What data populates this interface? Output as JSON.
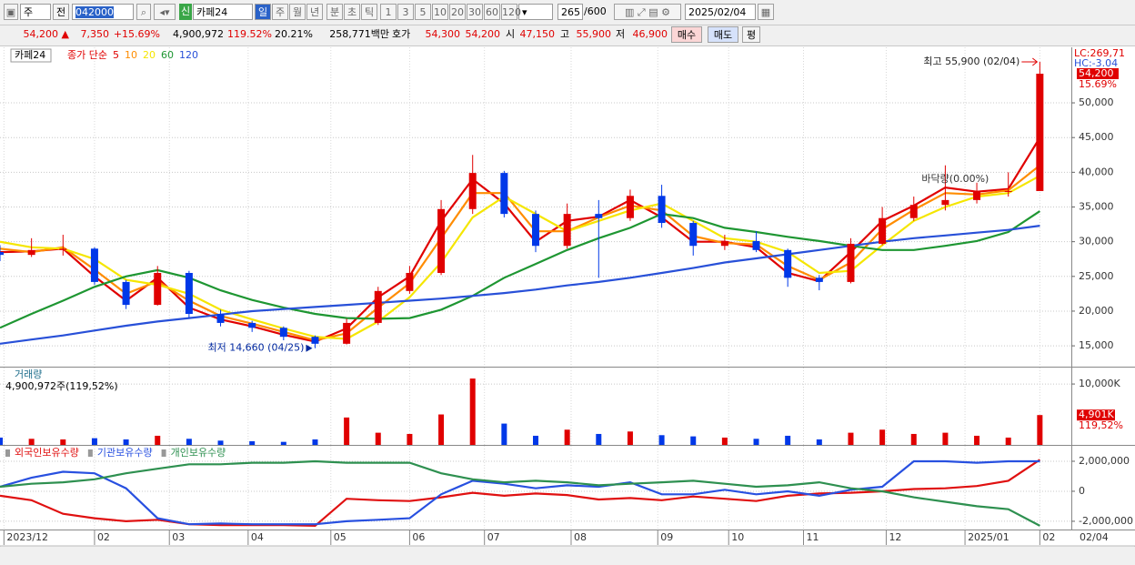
{
  "toolbar": {
    "unit": "주",
    "prev": "전",
    "code": "042000",
    "credit": "신",
    "name": "카페24",
    "periods": [
      "일",
      "주",
      "월",
      "년",
      "분",
      "초",
      "틱"
    ],
    "intervals": [
      "1",
      "3",
      "5",
      "10",
      "20",
      "30",
      "60",
      "120"
    ],
    "count": "265",
    "max": "/600",
    "date": "2025/02/04"
  },
  "quote": {
    "price": "54,200 ▲",
    "change": "7,350",
    "rate": "+15.69%",
    "volume": "4,900,972",
    "vol_rate": "119.52%",
    "turnover": "20.21%",
    "amount": "258,771백만",
    "ask_label": "호가",
    "ask": "54,300",
    "bid": "54,200",
    "open_label": "시",
    "open": "47,150",
    "high_label": "고",
    "high": "55,900",
    "low_label": "저",
    "low": "46,900",
    "buy": "매수",
    "sell": "매도",
    "avg": "평"
  },
  "chart_data": [
    {
      "type": "candlestick",
      "name": "카페24",
      "legend_title": "종가 단순",
      "lc": "LC:269,71",
      "hc": "HC:-3.04",
      "x": [
        0,
        8,
        16,
        24,
        32,
        40,
        48,
        56,
        64,
        72,
        80,
        88,
        96,
        104,
        112,
        120,
        128,
        136,
        144,
        152,
        160,
        168,
        176,
        184,
        192,
        200,
        208,
        216,
        224,
        232,
        240,
        248,
        256,
        264
      ],
      "xlim": [
        0,
        272
      ],
      "ylim": [
        12000,
        58000
      ],
      "yticks": [
        {
          "value": 15000,
          "label": "15,000"
        },
        {
          "value": 20000,
          "label": "20,000"
        },
        {
          "value": 25000,
          "label": "25,000"
        },
        {
          "value": 30000,
          "label": "30,000"
        },
        {
          "value": 35000,
          "label": "35,000"
        },
        {
          "value": 40000,
          "label": "40,000"
        },
        {
          "value": 45000,
          "label": "45,000"
        },
        {
          "value": 50000,
          "label": "50,000"
        }
      ],
      "grid": true,
      "up_color": "#e00000",
      "down_color": "#0038e8",
      "candles": {
        "open": [
          28500,
          28100,
          28800,
          29000,
          24200,
          20900,
          25500,
          19600,
          18300,
          17600,
          16300,
          15300,
          18300,
          22900,
          25500,
          34700,
          39900,
          34000,
          29400,
          34000,
          33400,
          36600,
          32700,
          29400,
          30100,
          28800,
          24800,
          24200,
          29700,
          33400,
          35300,
          36000,
          37300,
          37300
        ],
        "high": [
          29500,
          30500,
          31000,
          29200,
          24500,
          26500,
          25800,
          20200,
          18600,
          17800,
          16500,
          18900,
          23500,
          26500,
          36000,
          42500,
          40200,
          34500,
          35500,
          36000,
          37500,
          38200,
          33000,
          31000,
          31500,
          29000,
          25200,
          30500,
          35000,
          36500,
          41000,
          38500,
          40000,
          55900
        ],
        "low": [
          27200,
          27800,
          28000,
          23800,
          20300,
          20800,
          19000,
          17800,
          17000,
          15800,
          14660,
          15200,
          18000,
          22500,
          25200,
          34000,
          33500,
          28500,
          29000,
          24800,
          33000,
          32000,
          28000,
          28800,
          28500,
          23500,
          23000,
          24000,
          29500,
          33000,
          34500,
          35500,
          36500,
          38000
        ],
        "close": [
          28100,
          28800,
          29000,
          24200,
          20900,
          25500,
          19600,
          18300,
          17600,
          16300,
          15300,
          18300,
          22900,
          25500,
          34700,
          39900,
          34000,
          29400,
          34000,
          33400,
          36600,
          32700,
          29400,
          30100,
          28800,
          24800,
          24200,
          29700,
          33400,
          35300,
          36000,
          37300,
          37300,
          54200
        ]
      },
      "series": [
        {
          "name": "5",
          "color": "#e00000",
          "values": [
            28500,
            28600,
            29000,
            25000,
            21500,
            24800,
            20500,
            18800,
            17800,
            16600,
            15600,
            17500,
            22000,
            25000,
            33000,
            39000,
            35500,
            30000,
            33000,
            33600,
            36000,
            33500,
            30000,
            30000,
            29200,
            25500,
            24300,
            28500,
            33000,
            35200,
            37800,
            37200,
            37600,
            45000
          ]
        },
        {
          "name": "10",
          "color": "#ff8c00",
          "values": [
            29000,
            28500,
            29200,
            26000,
            22500,
            24300,
            21500,
            19300,
            18200,
            17000,
            15800,
            16800,
            20500,
            24000,
            30500,
            37000,
            37000,
            31500,
            31500,
            33500,
            35200,
            34500,
            30800,
            29800,
            29600,
            26500,
            24500,
            27000,
            31800,
            34600,
            37000,
            36800,
            37400,
            41000
          ]
        },
        {
          "name": "20",
          "color": "#f5e600",
          "values": [
            30000,
            29200,
            29000,
            27500,
            24500,
            23800,
            22500,
            20200,
            18800,
            17500,
            16300,
            16000,
            18500,
            22000,
            27000,
            33500,
            36500,
            34000,
            31500,
            33000,
            34500,
            35500,
            33000,
            30500,
            30000,
            28500,
            25500,
            25800,
            29500,
            33000,
            35000,
            36500,
            37000,
            39500
          ]
        },
        {
          "name": "60",
          "color": "#1e9632",
          "values": [
            17600,
            19600,
            21500,
            23500,
            25000,
            25900,
            24800,
            23000,
            21600,
            20500,
            19600,
            19000,
            18900,
            19000,
            20200,
            22200,
            24800,
            26800,
            28800,
            30500,
            32000,
            34000,
            33400,
            32000,
            31400,
            30700,
            30100,
            29400,
            28800,
            28800,
            29400,
            30100,
            31400,
            34400
          ]
        },
        {
          "name": "120",
          "color": "#2850d8",
          "values": [
            15300,
            15900,
            16500,
            17200,
            17900,
            18500,
            19000,
            19500,
            20000,
            20300,
            20600,
            20900,
            21200,
            21500,
            21800,
            22200,
            22600,
            23100,
            23700,
            24200,
            24800,
            25500,
            26200,
            27000,
            27600,
            28200,
            28800,
            29400,
            30000,
            30500,
            30900,
            31300,
            31700,
            32300
          ]
        }
      ],
      "last": {
        "value": 54200,
        "label": "54,200",
        "change": "15.69%"
      },
      "annotations": [
        {
          "text": "최고 55,900 (02/04)",
          "x": 264,
          "y": 55900
        },
        {
          "text": "최저 14,660 (04/25)",
          "x": 80,
          "y": 14660
        },
        {
          "text": "바닥량(0.00%)",
          "x": 234,
          "y": 39000
        }
      ]
    },
    {
      "type": "bar",
      "name": "거래량",
      "subtitle": "4,900,972주(119,52%)",
      "x": [
        0,
        8,
        16,
        24,
        32,
        40,
        48,
        56,
        64,
        72,
        80,
        88,
        96,
        104,
        112,
        120,
        128,
        136,
        144,
        152,
        160,
        168,
        176,
        184,
        192,
        200,
        208,
        216,
        224,
        232,
        240,
        248,
        256,
        264
      ],
      "xlim": [
        0,
        272
      ],
      "ylim": [
        0,
        12700
      ],
      "yticks": [
        {
          "value": 10000,
          "label": "10,000K"
        }
      ],
      "values": [
        1200,
        1000,
        900,
        1100,
        900,
        1500,
        1000,
        700,
        600,
        500,
        900,
        4500,
        2000,
        1800,
        5000,
        10900,
        3500,
        1500,
        2500,
        1800,
        2200,
        1600,
        1400,
        1200,
        1000,
        1500,
        900,
        2000,
        2500,
        1800,
        2000,
        1500,
        1200,
        4901
      ],
      "last": {
        "value": 4901,
        "label": "4,901K",
        "change": "119,52%"
      }
    },
    {
      "type": "line",
      "x": [
        0,
        8,
        16,
        24,
        32,
        40,
        48,
        56,
        64,
        72,
        80,
        88,
        96,
        104,
        112,
        120,
        128,
        136,
        144,
        152,
        160,
        168,
        176,
        184,
        192,
        200,
        208,
        216,
        224,
        232,
        240,
        248,
        256,
        264
      ],
      "xlim": [
        0,
        272
      ],
      "ylim": [
        -2550000,
        3030000
      ],
      "yticks": [
        {
          "value": -2000000,
          "label": "-2,000,000"
        },
        0,
        {
          "value": 2000000,
          "label": "2,000,000"
        }
      ],
      "xticks": [
        {
          "value": 1,
          "label": "2023/12"
        },
        {
          "value": 24,
          "label": "02"
        },
        {
          "value": 43,
          "label": "03"
        },
        {
          "value": 63,
          "label": "04"
        },
        {
          "value": 84,
          "label": "05"
        },
        {
          "value": 104,
          "label": "06"
        },
        {
          "value": 123,
          "label": "07"
        },
        {
          "value": 145,
          "label": "08"
        },
        {
          "value": 167,
          "label": "09"
        },
        {
          "value": 185,
          "label": "10"
        },
        {
          "value": 204,
          "label": "11"
        },
        {
          "value": 225,
          "label": "12"
        },
        {
          "value": 245,
          "label": "2025/01"
        },
        {
          "value": 264,
          "label": "02"
        }
      ],
      "last_date": "02/04",
      "series": [
        {
          "name": "외국인보유수량",
          "color": "#e01010",
          "values": [
            -300000,
            -600000,
            -1500000,
            -1800000,
            -2000000,
            -1900000,
            -2200000,
            -2250000,
            -2250000,
            -2250000,
            -2300000,
            -500000,
            -600000,
            -650000,
            -400000,
            -100000,
            -300000,
            -150000,
            -250000,
            -550000,
            -450000,
            -600000,
            -350000,
            -500000,
            -650000,
            -300000,
            -150000,
            -100000,
            0,
            150000,
            200000,
            350000,
            700000,
            2100000
          ]
        },
        {
          "name": "기관보유수량",
          "color": "#2850e0",
          "values": [
            300000,
            900000,
            1300000,
            1200000,
            200000,
            -1800000,
            -2200000,
            -2150000,
            -2200000,
            -2200000,
            -2200000,
            -2000000,
            -1900000,
            -1800000,
            -200000,
            700000,
            500000,
            200000,
            400000,
            300000,
            600000,
            -200000,
            -200000,
            100000,
            -200000,
            0,
            -300000,
            100000,
            300000,
            2000000,
            2000000,
            1900000,
            2000000,
            2000000
          ]
        },
        {
          "name": "개인보유수량",
          "color": "#2e9050",
          "values": [
            300000,
            500000,
            600000,
            800000,
            1200000,
            1500000,
            1800000,
            1800000,
            1900000,
            1900000,
            2000000,
            1900000,
            1900000,
            1900000,
            1200000,
            800000,
            600000,
            700000,
            600000,
            400000,
            500000,
            600000,
            700000,
            500000,
            300000,
            400000,
            600000,
            200000,
            0,
            -400000,
            -700000,
            -1000000,
            -1200000,
            -2300000
          ]
        }
      ]
    }
  ]
}
